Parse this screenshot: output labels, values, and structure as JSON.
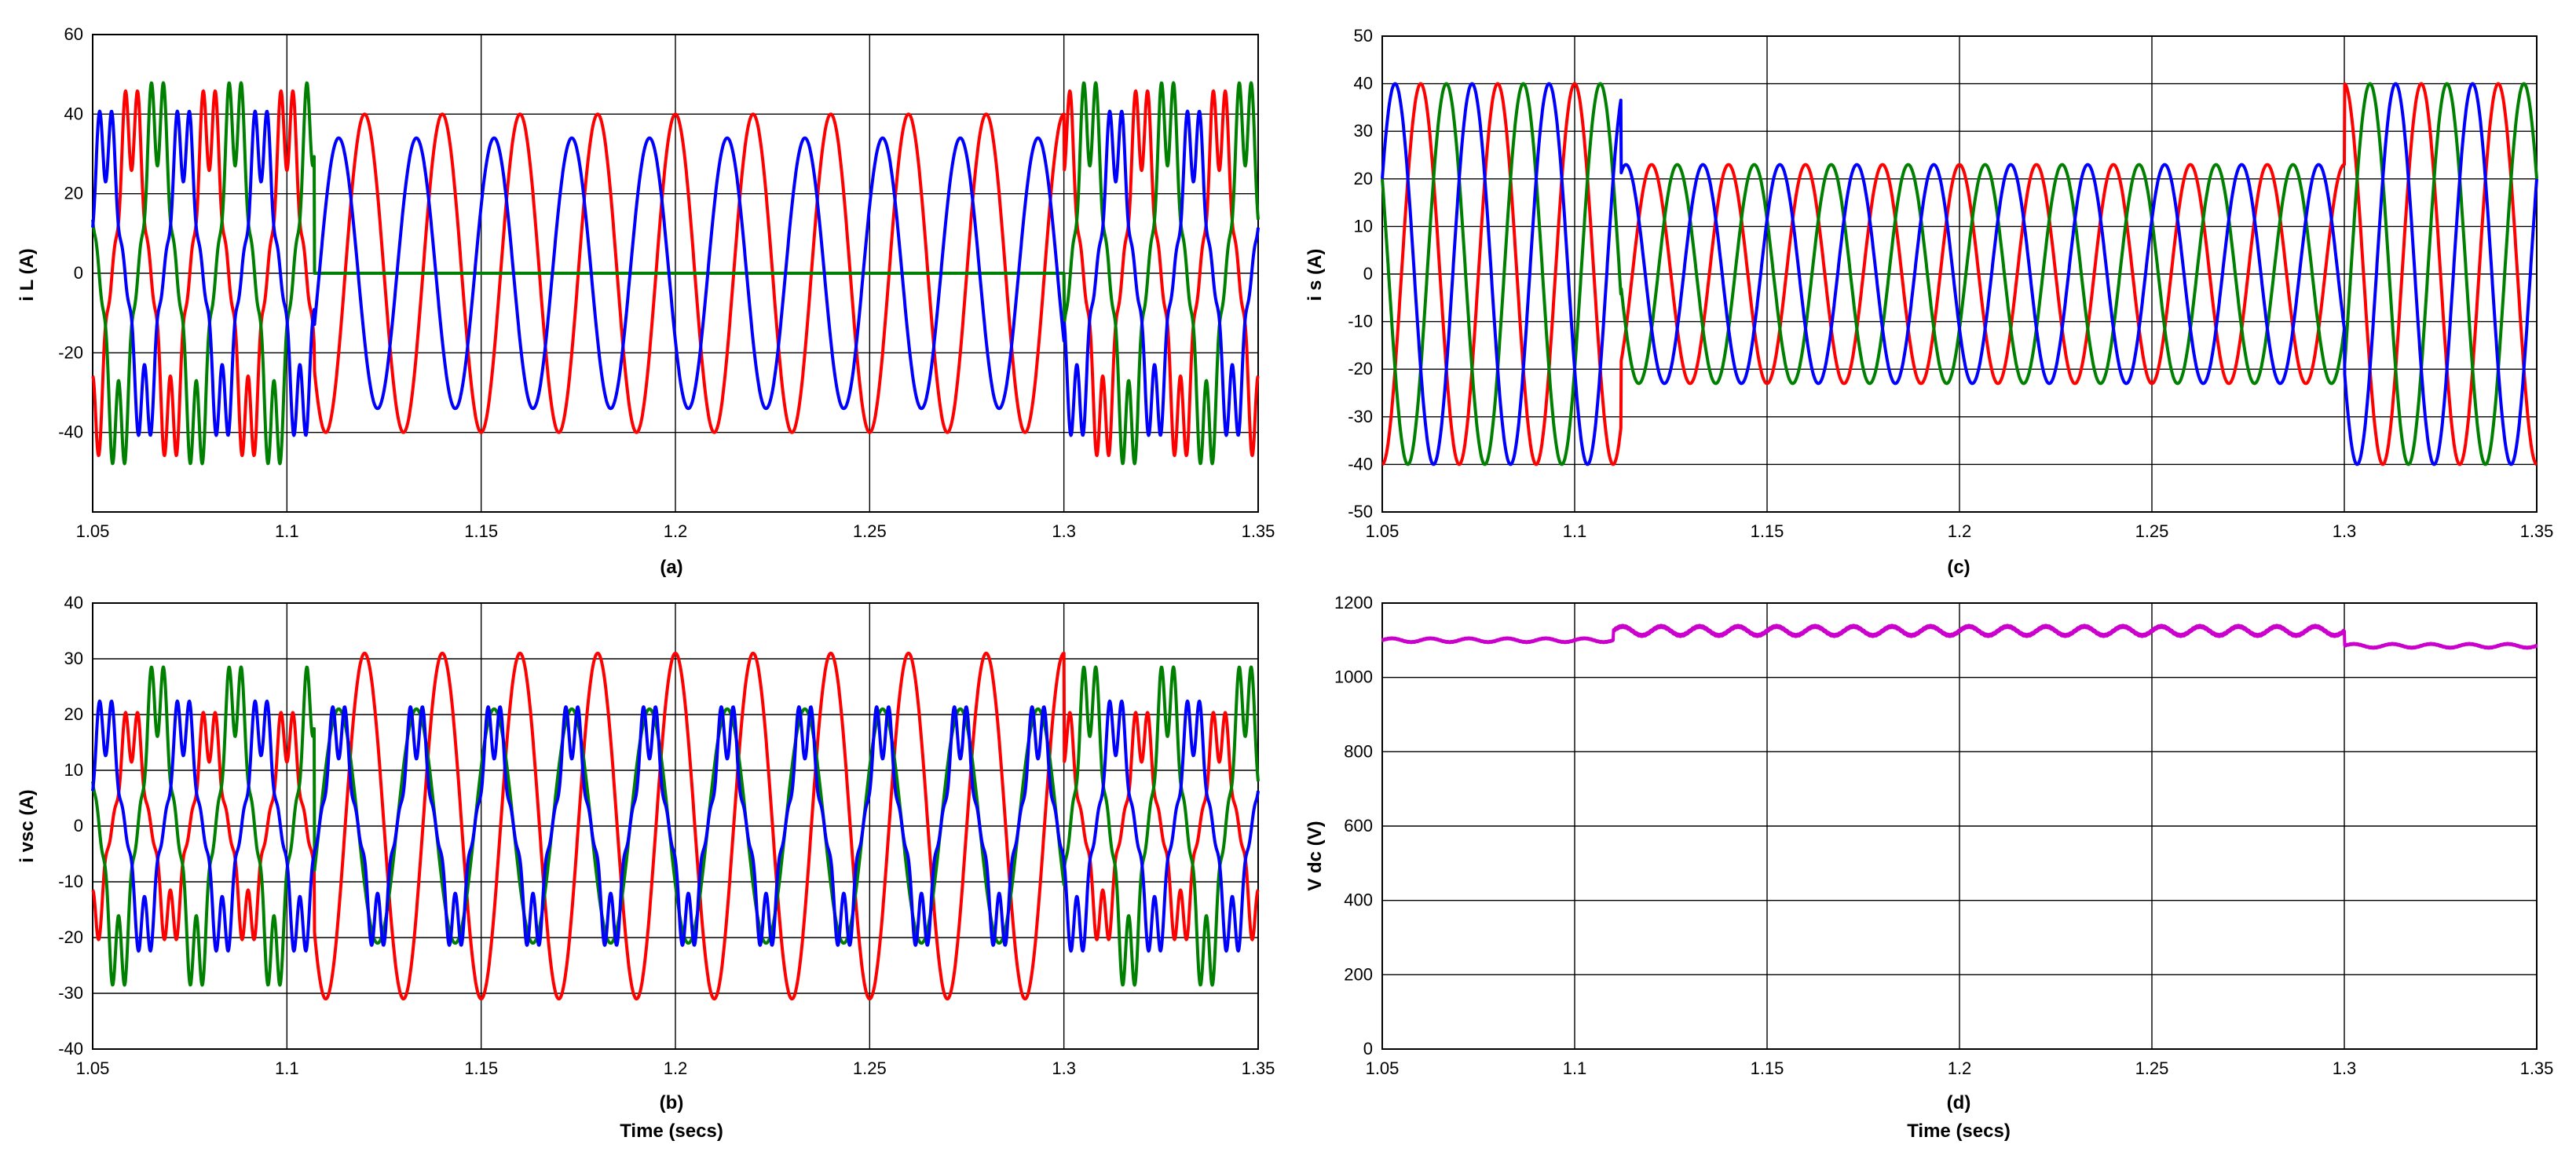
{
  "chart_data": [
    {
      "id": "a",
      "type": "line",
      "caption": "(a)",
      "xlabel": "",
      "ylabel": "i L (A)",
      "xlim": [
        1.05,
        1.35
      ],
      "ylim": [
        -60,
        60
      ],
      "xticks": [
        1.05,
        1.1,
        1.15,
        1.2,
        1.25,
        1.3,
        1.35
      ],
      "yticks": [
        -40,
        -20,
        0,
        20,
        40,
        60
      ],
      "grid": true,
      "frequency_hz": 50,
      "series": [
        {
          "color": "#ff0000",
          "segments": [
            {
              "t0": 1.05,
              "t1": 1.107,
              "amplitude": 45,
              "phase_deg": 90,
              "harmonics": true
            },
            {
              "t0": 1.107,
              "t1": 1.3,
              "amplitude": 40,
              "phase_deg": 90
            },
            {
              "t0": 1.3,
              "t1": 1.35,
              "amplitude": 45,
              "phase_deg": 90,
              "harmonics": true
            }
          ]
        },
        {
          "color": "#008000",
          "segments": [
            {
              "t0": 1.05,
              "t1": 1.107,
              "amplitude": 47,
              "phase_deg": -30,
              "harmonics": true
            },
            {
              "t0": 1.107,
              "t1": 1.3,
              "amplitude": 0,
              "phase_deg": 0
            },
            {
              "t0": 1.3,
              "t1": 1.35,
              "amplitude": 47,
              "phase_deg": -30,
              "harmonics": true
            }
          ]
        },
        {
          "color": "#0000ff",
          "segments": [
            {
              "t0": 1.05,
              "t1": 1.107,
              "amplitude": 40,
              "phase_deg": 210,
              "harmonics": true
            },
            {
              "t0": 1.107,
              "t1": 1.3,
              "amplitude": 34,
              "phase_deg": 210
            },
            {
              "t0": 1.3,
              "t1": 1.35,
              "amplitude": 40,
              "phase_deg": 210,
              "harmonics": true
            }
          ]
        }
      ]
    },
    {
      "id": "b",
      "type": "line",
      "caption": "(b)",
      "xlabel": "Time (secs)",
      "ylabel": "i vsc (A)",
      "xlim": [
        1.05,
        1.35
      ],
      "ylim": [
        -40,
        40
      ],
      "xticks": [
        1.05,
        1.1,
        1.15,
        1.2,
        1.25,
        1.3,
        1.35
      ],
      "yticks": [
        -40,
        -30,
        -20,
        -10,
        0,
        10,
        20,
        30,
        40
      ],
      "grid": true,
      "frequency_hz": 50,
      "series": [
        {
          "color": "#ff0000",
          "segments": [
            {
              "t0": 1.05,
              "t1": 1.107,
              "amplitude": 20,
              "phase_deg": 90,
              "harmonics": true
            },
            {
              "t0": 1.107,
              "t1": 1.3,
              "amplitude": 31,
              "phase_deg": 90
            },
            {
              "t0": 1.3,
              "t1": 1.35,
              "amplitude": 20,
              "phase_deg": 90,
              "harmonics": true
            }
          ]
        },
        {
          "color": "#008000",
          "segments": [
            {
              "t0": 1.05,
              "t1": 1.107,
              "amplitude": 28,
              "phase_deg": -30,
              "harmonics": true
            },
            {
              "t0": 1.107,
              "t1": 1.3,
              "amplitude": 21,
              "phase_deg": 210
            },
            {
              "t0": 1.3,
              "t1": 1.35,
              "amplitude": 28,
              "phase_deg": -30,
              "harmonics": true
            }
          ]
        },
        {
          "color": "#0000ff",
          "segments": [
            {
              "t0": 1.05,
              "t1": 1.107,
              "amplitude": 22,
              "phase_deg": 210,
              "harmonics": true
            },
            {
              "t0": 1.107,
              "t1": 1.3,
              "amplitude": 21,
              "phase_deg": 210,
              "harmonics": true
            },
            {
              "t0": 1.3,
              "t1": 1.35,
              "amplitude": 22,
              "phase_deg": 210,
              "harmonics": true
            }
          ]
        }
      ]
    },
    {
      "id": "c",
      "type": "line",
      "caption": "(c)",
      "xlabel": "",
      "ylabel": "i s (A)",
      "xlim": [
        1.05,
        1.35
      ],
      "ylim": [
        -50,
        50
      ],
      "xticks": [
        1.05,
        1.1,
        1.15,
        1.2,
        1.25,
        1.3,
        1.35
      ],
      "yticks": [
        -50,
        -40,
        -30,
        -20,
        -10,
        0,
        10,
        20,
        30,
        40,
        50
      ],
      "grid": true,
      "frequency_hz": 50,
      "series": [
        {
          "color": "#ff0000",
          "segments": [
            {
              "t0": 1.05,
              "t1": 1.112,
              "amplitude": 40,
              "phase_deg": 90
            },
            {
              "t0": 1.112,
              "t1": 1.3,
              "amplitude": 23,
              "phase_deg": 90
            },
            {
              "t0": 1.3,
              "t1": 1.35,
              "amplitude": 40,
              "phase_deg": 90
            }
          ]
        },
        {
          "color": "#008000",
          "segments": [
            {
              "t0": 1.05,
              "t1": 1.112,
              "amplitude": 40,
              "phase_deg": -30
            },
            {
              "t0": 1.112,
              "t1": 1.3,
              "amplitude": 23,
              "phase_deg": -30
            },
            {
              "t0": 1.3,
              "t1": 1.35,
              "amplitude": 40,
              "phase_deg": -30
            }
          ]
        },
        {
          "color": "#0000ff",
          "segments": [
            {
              "t0": 1.05,
              "t1": 1.112,
              "amplitude": 40,
              "phase_deg": 210
            },
            {
              "t0": 1.112,
              "t1": 1.3,
              "amplitude": 23,
              "phase_deg": 210
            },
            {
              "t0": 1.3,
              "t1": 1.35,
              "amplitude": 40,
              "phase_deg": 210
            }
          ]
        }
      ]
    },
    {
      "id": "d",
      "type": "line",
      "caption": "(d)",
      "xlabel": "Time (secs)",
      "ylabel": "V dc (V)",
      "xlim": [
        1.05,
        1.35
      ],
      "ylim": [
        0,
        1200
      ],
      "xticks": [
        1.05,
        1.1,
        1.15,
        1.2,
        1.25,
        1.3,
        1.35
      ],
      "yticks": [
        0,
        200,
        400,
        600,
        800,
        1000,
        1200
      ],
      "grid": true,
      "frequency_hz": 50,
      "series": [
        {
          "color": "#cc00cc",
          "segments": [
            {
              "t0": 1.05,
              "t1": 1.11,
              "mean": 1100,
              "ripple": 5
            },
            {
              "t0": 1.11,
              "t1": 1.3,
              "mean": 1125,
              "ripple": 12
            },
            {
              "t0": 1.3,
              "t1": 1.35,
              "mean": 1085,
              "ripple": 5
            }
          ]
        }
      ]
    }
  ]
}
